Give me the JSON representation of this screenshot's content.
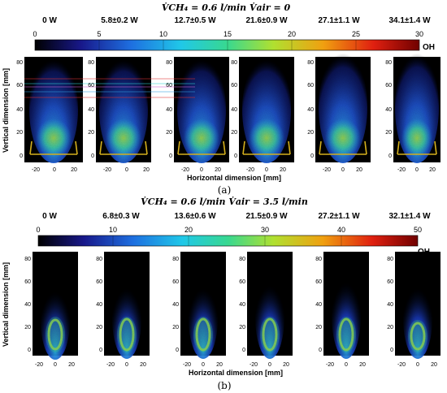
{
  "panels": [
    {
      "title": "V̇CH₄ = 0.6 l/min   V̇air = 0",
      "caption": "(a)",
      "colorbar": {
        "ticks": [
          "0",
          "5",
          "10",
          "15",
          "20",
          "25",
          "30"
        ],
        "label": "OH"
      },
      "powers": [
        "0 W",
        "5.8±0.2 W",
        "12.7±0.5 W",
        "21.6±0.9 W",
        "27.1±1.1 W",
        "34.1±1.4 W"
      ],
      "ylabel": "Vertical dimension [mm]",
      "xlabel": "Horizontal dimension [mm]",
      "yticks": [
        "80",
        "60",
        "40",
        "20",
        "0"
      ],
      "xticks": [
        "-20",
        "0",
        "20"
      ]
    },
    {
      "title": "V̇CH₄ = 0.6 l/min   V̇air = 3.5 l/min",
      "caption": "(b)",
      "colorbar": {
        "ticks": [
          "0",
          "10",
          "20",
          "30",
          "40",
          "50"
        ],
        "label": "OH"
      },
      "powers": [
        "0 W",
        "6.8±0.3 W",
        "13.6±0.6 W",
        "21.5±0.9 W",
        "27.2±1.1 W",
        "32.1±1.4 W"
      ],
      "ylabel": "Vertical dimension [mm]",
      "xlabel": "Horizontal dimension [mm]",
      "yticks": [
        "80",
        "60",
        "40",
        "20",
        "0"
      ],
      "xticks": [
        "-20",
        "0",
        "20"
      ]
    }
  ],
  "colors": {
    "colormap": [
      "#000000",
      "#1a1aa8",
      "#1e6fe0",
      "#20c8e8",
      "#40e090",
      "#b8e020",
      "#f0a010",
      "#e02010",
      "#7a0000"
    ],
    "flame_core": "#c8e020",
    "flame_mid": "#20b0e0",
    "flame_outer": "#1f3fc0"
  }
}
